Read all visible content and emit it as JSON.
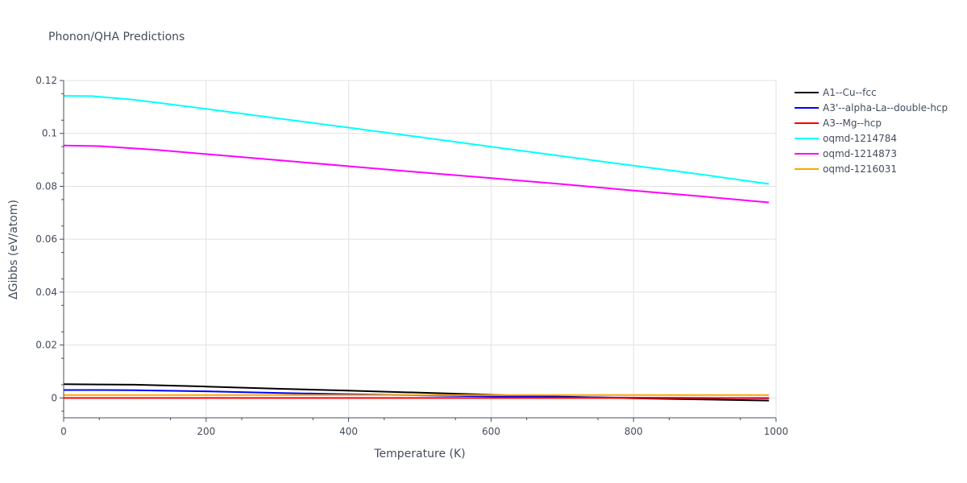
{
  "chart_data": {
    "type": "line",
    "title": "Phonon/QHA Predictions",
    "xlabel": "Temperature (K)",
    "ylabel": "ΔGibbs (eV/atom)",
    "xlim": [
      0,
      1000
    ],
    "ylim": [
      -0.0075,
      0.12
    ],
    "xticks": [
      0,
      200,
      400,
      600,
      800,
      1000
    ],
    "xtick_labels": [
      "0",
      "200",
      "400",
      "600",
      "800",
      "1000"
    ],
    "yticks": [
      0,
      0.02,
      0.04,
      0.06,
      0.08,
      0.1,
      0.12
    ],
    "ytick_labels": [
      "0",
      "0.02",
      "0.04",
      "0.06",
      "0.08",
      "0.1",
      "0.12"
    ],
    "grid": true,
    "legend_position": "top-right, outside plot",
    "series": [
      {
        "name": "A1--Cu--fcc",
        "color": "#000000",
        "x": [
          0,
          50,
          100,
          200,
          300,
          400,
          500,
          600,
          700,
          800,
          900,
          990
        ],
        "y": [
          0.0052,
          0.0051,
          0.005,
          0.0043,
          0.0035,
          0.0028,
          0.002,
          0.0012,
          0.0005,
          -0.0001,
          -0.0006,
          -0.001
        ]
      },
      {
        "name": "A3'--alpha-La--double-hcp",
        "color": "#0000ff",
        "x": [
          0,
          50,
          100,
          200,
          300,
          400,
          500,
          600,
          700,
          800,
          900,
          990
        ],
        "y": [
          0.003,
          0.003,
          0.0029,
          0.0025,
          0.0019,
          0.0014,
          0.001,
          0.0006,
          0.0003,
          0.0001,
          0.0,
          -0.0001
        ]
      },
      {
        "name": "A3--Mg--hcp",
        "color": "#ff0000",
        "x": [
          0,
          200,
          400,
          600,
          800,
          990
        ],
        "y": [
          0,
          0,
          0,
          0,
          0,
          0
        ]
      },
      {
        "name": "oqmd-1214784",
        "color": "#00ffff",
        "x": [
          0,
          40,
          100,
          200,
          300,
          400,
          500,
          600,
          700,
          800,
          900,
          990
        ],
        "y": [
          0.1142,
          0.1141,
          0.1127,
          0.1093,
          0.1057,
          0.1022,
          0.0986,
          0.095,
          0.0914,
          0.0878,
          0.0843,
          0.0809
        ]
      },
      {
        "name": "oqmd-1214873",
        "color": "#ff00ff",
        "x": [
          0,
          50,
          130,
          200,
          300,
          400,
          500,
          600,
          700,
          800,
          900,
          990
        ],
        "y": [
          0.0954,
          0.0952,
          0.0938,
          0.0922,
          0.0899,
          0.0876,
          0.0853,
          0.0831,
          0.0808,
          0.0784,
          0.0761,
          0.0739
        ]
      },
      {
        "name": "oqmd-1216031",
        "color": "#ffa500",
        "x": [
          0,
          200,
          400,
          600,
          800,
          990
        ],
        "y": [
          0.0011,
          0.0011,
          0.0011,
          0.0011,
          0.0011,
          0.0011
        ]
      }
    ]
  }
}
